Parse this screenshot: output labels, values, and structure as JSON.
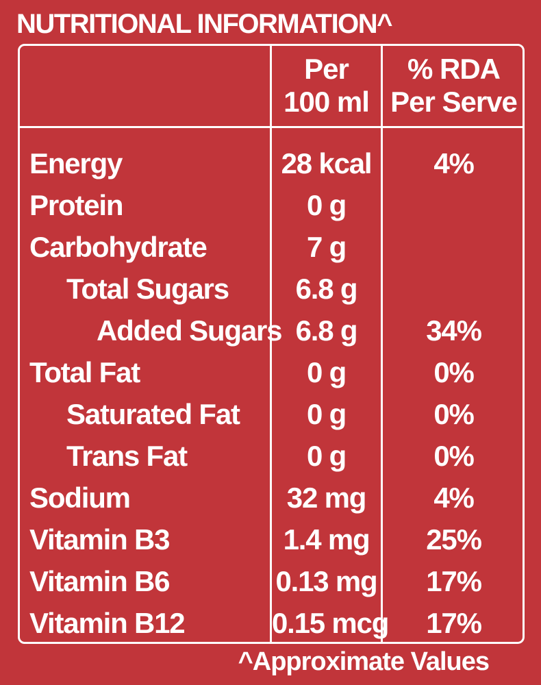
{
  "title": "NUTRITIONAL INFORMATION^",
  "columns": {
    "per_100ml_line1": "Per",
    "per_100ml_line2": "100 ml",
    "rda_line1": "% RDA",
    "rda_line2": "Per Serve"
  },
  "rows": [
    {
      "name": "Energy",
      "level": 0,
      "per": "28 kcal",
      "rda": "4%"
    },
    {
      "name": "Protein",
      "level": 0,
      "per": "0 g",
      "rda": ""
    },
    {
      "name": "Carbohydrate",
      "level": 0,
      "per": "7 g",
      "rda": ""
    },
    {
      "name": "Total Sugars",
      "level": 1,
      "per": "6.8 g",
      "rda": ""
    },
    {
      "name": "Added Sugars",
      "level": 2,
      "per": "6.8 g",
      "rda": "34%"
    },
    {
      "name": "Total Fat",
      "level": 0,
      "per": "0 g",
      "rda": "0%"
    },
    {
      "name": "Saturated Fat",
      "level": 1,
      "per": "0 g",
      "rda": "0%"
    },
    {
      "name": "Trans Fat",
      "level": 1,
      "per": "0 g",
      "rda": "0%"
    },
    {
      "name": "Sodium",
      "level": 0,
      "per": "32 mg",
      "rda": "4%"
    },
    {
      "name": "Vitamin B3",
      "level": 0,
      "per": "1.4 mg",
      "rda": "25%"
    },
    {
      "name": "Vitamin B6",
      "level": 0,
      "per": "0.13 mg",
      "rda": "17%"
    },
    {
      "name": "Vitamin B12",
      "level": 0,
      "per": "0.15 mcg",
      "rda": "17%"
    }
  ],
  "footnote": "^Approximate Values",
  "colors": {
    "background": "#c1353a",
    "text": "#ffffff"
  }
}
